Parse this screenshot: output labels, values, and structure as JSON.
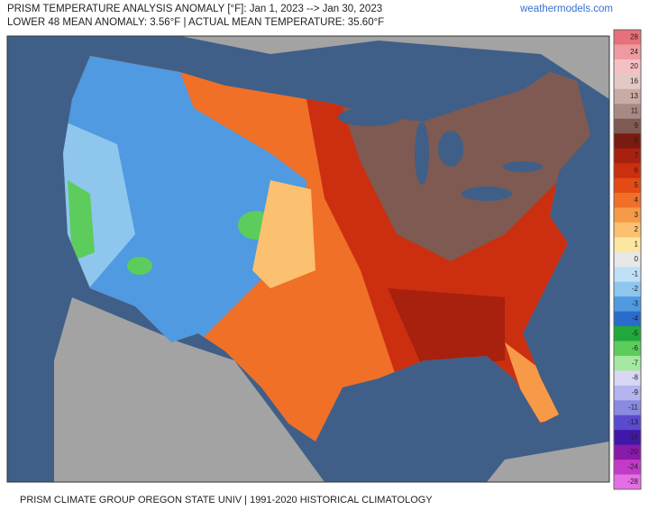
{
  "header": {
    "title": "PRISM TEMPERATURE ANALYSIS ANOMALY [°F]: Jan 1, 2023 --> Jan 30, 2023",
    "subtitle": "LOWER 48 MEAN ANOMALY: 3.56°F | ACTUAL MEAN TEMPERATURE: 35.60°F",
    "source": "weathermodels.com"
  },
  "legend": {
    "items": [
      {
        "label": "28",
        "color": "#e8707a"
      },
      {
        "label": "24",
        "color": "#ef9aa0"
      },
      {
        "label": "20",
        "color": "#f5c0c4"
      },
      {
        "label": "16",
        "color": "#e3c9c5"
      },
      {
        "label": "13",
        "color": "#c9aaa4"
      },
      {
        "label": "11",
        "color": "#a88a84"
      },
      {
        "label": "9",
        "color": "#7e5a52"
      },
      {
        "label": "8",
        "color": "#7a1a10"
      },
      {
        "label": "7",
        "color": "#a8200e"
      },
      {
        "label": "6",
        "color": "#cc2e10"
      },
      {
        "label": "5",
        "color": "#e34a14"
      },
      {
        "label": "4",
        "color": "#f07028"
      },
      {
        "label": "3",
        "color": "#f79a48"
      },
      {
        "label": "2",
        "color": "#fbc070"
      },
      {
        "label": "1",
        "color": "#fde6a0"
      },
      {
        "label": "0",
        "color": "#e8e8e8"
      },
      {
        "label": "-1",
        "color": "#bfe0f5"
      },
      {
        "label": "-2",
        "color": "#8ec6ee"
      },
      {
        "label": "-3",
        "color": "#4f9ae0"
      },
      {
        "label": "-4",
        "color": "#2a6ccc"
      },
      {
        "label": "-5",
        "color": "#22a83a"
      },
      {
        "label": "-6",
        "color": "#5ccc5c"
      },
      {
        "label": "-7",
        "color": "#a6e8a0"
      },
      {
        "label": "-8",
        "color": "#d8d8f4"
      },
      {
        "label": "-9",
        "color": "#b4b4ee"
      },
      {
        "label": "-11",
        "color": "#8a8ae0"
      },
      {
        "label": "-13",
        "color": "#5a4ad0"
      },
      {
        "label": "-16",
        "color": "#4018a8"
      },
      {
        "label": "-20",
        "color": "#8a1aa8"
      },
      {
        "label": "-24",
        "color": "#c23ac8"
      },
      {
        "label": "-28",
        "color": "#e46ee4"
      }
    ]
  },
  "footer": {
    "text": "PRISM CLIMATE GROUP OREGON STATE UNIV | 1991-2020 HISTORICAL CLIMATOLOGY"
  }
}
